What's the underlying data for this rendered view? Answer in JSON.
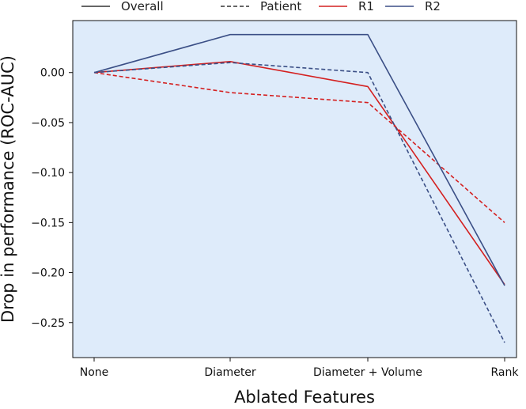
{
  "chart_data": {
    "type": "line",
    "categories": [
      "None",
      "Diameter",
      "Diameter + Volume",
      "Rank"
    ],
    "xlabel": "Ablated Features",
    "ylabel": "Drop in performance (ROC-AUC)",
    "ylim": [
      -0.285,
      0.052
    ],
    "yticks": [
      0.0,
      -0.05,
      -0.1,
      -0.15,
      -0.2,
      -0.25
    ],
    "ytick_labels": [
      "0.00",
      "−0.05",
      "−0.10",
      "−0.15",
      "−0.20",
      "−0.25"
    ],
    "grid": false,
    "background_color": "#deebfa",
    "legend": {
      "placement": "top",
      "entries": [
        {
          "label": "Overall",
          "color": "#333333",
          "style": "solid"
        },
        {
          "label": "Patient",
          "color": "#333333",
          "style": "dashed"
        },
        {
          "label": "R1",
          "color": "#d42020",
          "style": "solid"
        },
        {
          "label": "R2",
          "color": "#3b4f86",
          "style": "solid"
        }
      ]
    },
    "series": [
      {
        "name": "R1",
        "group": "Overall",
        "color": "#d42020",
        "style": "solid",
        "values": [
          0.0,
          0.011,
          -0.014,
          -0.212
        ]
      },
      {
        "name": "R1",
        "group": "Patient",
        "color": "#d42020",
        "style": "dashed",
        "values": [
          0.0,
          -0.02,
          -0.03,
          -0.15
        ]
      },
      {
        "name": "R2",
        "group": "Overall",
        "color": "#3b4f86",
        "style": "solid",
        "values": [
          0.0,
          0.038,
          0.038,
          -0.213
        ]
      },
      {
        "name": "R2",
        "group": "Patient",
        "color": "#3b4f86",
        "style": "dashed",
        "values": [
          0.0,
          0.01,
          0.0,
          -0.27
        ]
      }
    ]
  }
}
